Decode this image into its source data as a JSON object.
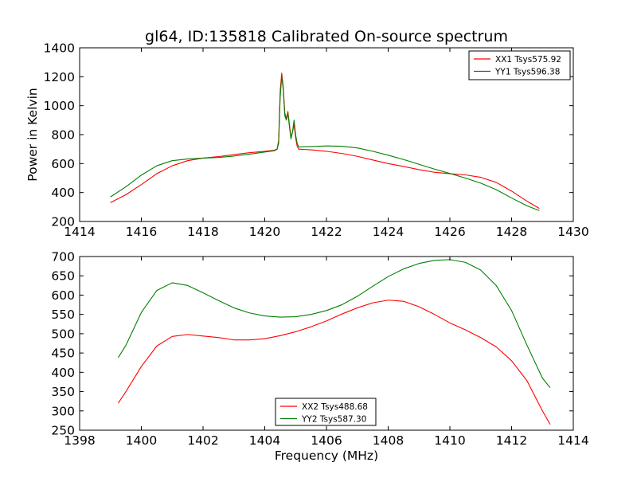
{
  "colors": {
    "red": "#ff0000",
    "green": "#008000"
  },
  "chart_data": [
    {
      "type": "line",
      "title": "gl64, ID:135818 Calibrated On-source spectrum",
      "xlabel": "",
      "ylabel": "Power in Kelvin",
      "xlim": [
        1414,
        1430
      ],
      "ylim": [
        200,
        1400
      ],
      "xticks": [
        1414,
        1416,
        1418,
        1420,
        1422,
        1424,
        1426,
        1428,
        1430
      ],
      "yticks": [
        200,
        400,
        600,
        800,
        1000,
        1200,
        1400
      ],
      "grid": false,
      "legend_position": "top-right",
      "series": [
        {
          "name": "XX1 Tsys575.92",
          "color": "#ff0000",
          "points": [
            [
              1415.0,
              330
            ],
            [
              1415.5,
              385
            ],
            [
              1416.0,
              455
            ],
            [
              1416.5,
              530
            ],
            [
              1417.0,
              585
            ],
            [
              1417.5,
              620
            ],
            [
              1418.0,
              638
            ],
            [
              1418.5,
              648
            ],
            [
              1419.0,
              662
            ],
            [
              1419.5,
              675
            ],
            [
              1420.0,
              685
            ],
            [
              1420.3,
              692
            ],
            [
              1420.4,
              700
            ],
            [
              1420.45,
              760
            ],
            [
              1420.5,
              1100
            ],
            [
              1420.55,
              1225
            ],
            [
              1420.6,
              1130
            ],
            [
              1420.65,
              950
            ],
            [
              1420.7,
              910
            ],
            [
              1420.75,
              960
            ],
            [
              1420.8,
              870
            ],
            [
              1420.85,
              780
            ],
            [
              1420.9,
              820
            ],
            [
              1420.95,
              870
            ],
            [
              1421.0,
              780
            ],
            [
              1421.05,
              720
            ],
            [
              1421.1,
              700
            ],
            [
              1421.5,
              695
            ],
            [
              1422.0,
              685
            ],
            [
              1422.5,
              670
            ],
            [
              1423.0,
              650
            ],
            [
              1423.5,
              625
            ],
            [
              1424.0,
              600
            ],
            [
              1424.5,
              580
            ],
            [
              1425.0,
              558
            ],
            [
              1425.5,
              540
            ],
            [
              1426.0,
              530
            ],
            [
              1426.5,
              522
            ],
            [
              1427.0,
              505
            ],
            [
              1427.5,
              470
            ],
            [
              1428.0,
              410
            ],
            [
              1428.5,
              340
            ],
            [
              1428.9,
              290
            ]
          ]
        },
        {
          "name": "YY1 Tsys596.38",
          "color": "#008000",
          "points": [
            [
              1415.0,
              370
            ],
            [
              1415.5,
              440
            ],
            [
              1416.0,
              520
            ],
            [
              1416.5,
              585
            ],
            [
              1417.0,
              620
            ],
            [
              1417.5,
              632
            ],
            [
              1418.0,
              638
            ],
            [
              1418.5,
              642
            ],
            [
              1419.0,
              652
            ],
            [
              1419.5,
              665
            ],
            [
              1420.0,
              680
            ],
            [
              1420.3,
              688
            ],
            [
              1420.4,
              698
            ],
            [
              1420.45,
              740
            ],
            [
              1420.5,
              1060
            ],
            [
              1420.55,
              1200
            ],
            [
              1420.6,
              1110
            ],
            [
              1420.65,
              930
            ],
            [
              1420.7,
              900
            ],
            [
              1420.75,
              950
            ],
            [
              1420.8,
              855
            ],
            [
              1420.85,
              770
            ],
            [
              1420.9,
              820
            ],
            [
              1420.95,
              900
            ],
            [
              1421.0,
              800
            ],
            [
              1421.05,
              740
            ],
            [
              1421.1,
              715
            ],
            [
              1421.5,
              718
            ],
            [
              1422.0,
              722
            ],
            [
              1422.5,
              720
            ],
            [
              1423.0,
              708
            ],
            [
              1423.5,
              685
            ],
            [
              1424.0,
              658
            ],
            [
              1424.5,
              628
            ],
            [
              1425.0,
              595
            ],
            [
              1425.5,
              562
            ],
            [
              1426.0,
              532
            ],
            [
              1426.5,
              500
            ],
            [
              1427.0,
              465
            ],
            [
              1427.5,
              420
            ],
            [
              1428.0,
              362
            ],
            [
              1428.5,
              308
            ],
            [
              1428.9,
              275
            ]
          ]
        }
      ]
    },
    {
      "type": "line",
      "title": "",
      "xlabel": "Frequency (MHz)",
      "ylabel": "",
      "xlim": [
        1398,
        1414
      ],
      "ylim": [
        250,
        700
      ],
      "xticks": [
        1398,
        1400,
        1402,
        1404,
        1406,
        1408,
        1410,
        1412,
        1414
      ],
      "yticks": [
        250,
        300,
        350,
        400,
        450,
        500,
        550,
        600,
        650,
        700
      ],
      "grid": false,
      "legend_position": "bottom-center",
      "series": [
        {
          "name": "XX2 Tsys488.68",
          "color": "#ff0000",
          "points": [
            [
              1399.25,
              320
            ],
            [
              1399.5,
              350
            ],
            [
              1400.0,
              415
            ],
            [
              1400.5,
              468
            ],
            [
              1401.0,
              493
            ],
            [
              1401.5,
              498
            ],
            [
              1402.0,
              494
            ],
            [
              1402.5,
              490
            ],
            [
              1403.0,
              484
            ],
            [
              1403.5,
              484
            ],
            [
              1404.0,
              487
            ],
            [
              1404.5,
              495
            ],
            [
              1405.0,
              505
            ],
            [
              1405.5,
              518
            ],
            [
              1406.0,
              533
            ],
            [
              1406.5,
              551
            ],
            [
              1407.0,
              567
            ],
            [
              1407.5,
              580
            ],
            [
              1408.0,
              587
            ],
            [
              1408.5,
              584
            ],
            [
              1409.0,
              570
            ],
            [
              1409.5,
              550
            ],
            [
              1410.0,
              528
            ],
            [
              1410.5,
              510
            ],
            [
              1411.0,
              490
            ],
            [
              1411.5,
              466
            ],
            [
              1412.0,
              430
            ],
            [
              1412.5,
              378
            ],
            [
              1413.0,
              300
            ],
            [
              1413.25,
              265
            ]
          ]
        },
        {
          "name": "YY2 Tsys587.30",
          "color": "#008000",
          "points": [
            [
              1399.25,
              438
            ],
            [
              1399.5,
              470
            ],
            [
              1400.0,
              555
            ],
            [
              1400.5,
              612
            ],
            [
              1401.0,
              632
            ],
            [
              1401.5,
              625
            ],
            [
              1402.0,
              606
            ],
            [
              1402.5,
              586
            ],
            [
              1403.0,
              567
            ],
            [
              1403.5,
              554
            ],
            [
              1404.0,
              546
            ],
            [
              1404.5,
              543
            ],
            [
              1405.0,
              544
            ],
            [
              1405.5,
              550
            ],
            [
              1406.0,
              560
            ],
            [
              1406.5,
              575
            ],
            [
              1407.0,
              597
            ],
            [
              1407.5,
              623
            ],
            [
              1408.0,
              648
            ],
            [
              1408.5,
              668
            ],
            [
              1409.0,
              682
            ],
            [
              1409.5,
              690
            ],
            [
              1410.0,
              692
            ],
            [
              1410.5,
              685
            ],
            [
              1411.0,
              665
            ],
            [
              1411.5,
              625
            ],
            [
              1412.0,
              560
            ],
            [
              1412.5,
              470
            ],
            [
              1413.0,
              385
            ],
            [
              1413.25,
              360
            ]
          ]
        }
      ]
    }
  ]
}
